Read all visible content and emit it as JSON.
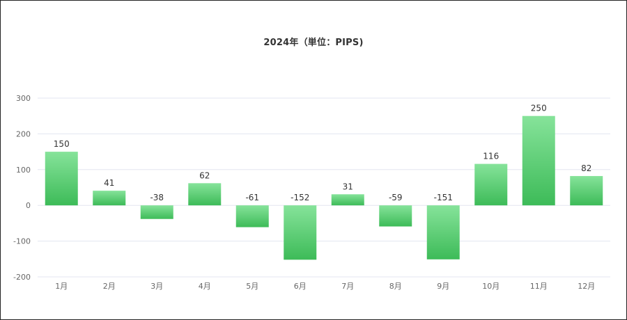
{
  "chart_data": {
    "type": "bar",
    "title": "2024年（単位：PIPS)",
    "categories": [
      "1月",
      "2月",
      "3月",
      "4月",
      "5月",
      "6月",
      "7月",
      "8月",
      "9月",
      "10月",
      "11月",
      "12月"
    ],
    "values": [
      150,
      41,
      -38,
      62,
      -61,
      -152,
      31,
      -59,
      -151,
      116,
      250,
      82
    ],
    "ylim": [
      -200,
      300
    ],
    "yticks": [
      300,
      200,
      100,
      0,
      -100,
      -200
    ],
    "grid": true,
    "bar_color_top": "#86e39a",
    "bar_color_bottom": "#3dbb58",
    "grid_color": "#e3e6f0"
  }
}
